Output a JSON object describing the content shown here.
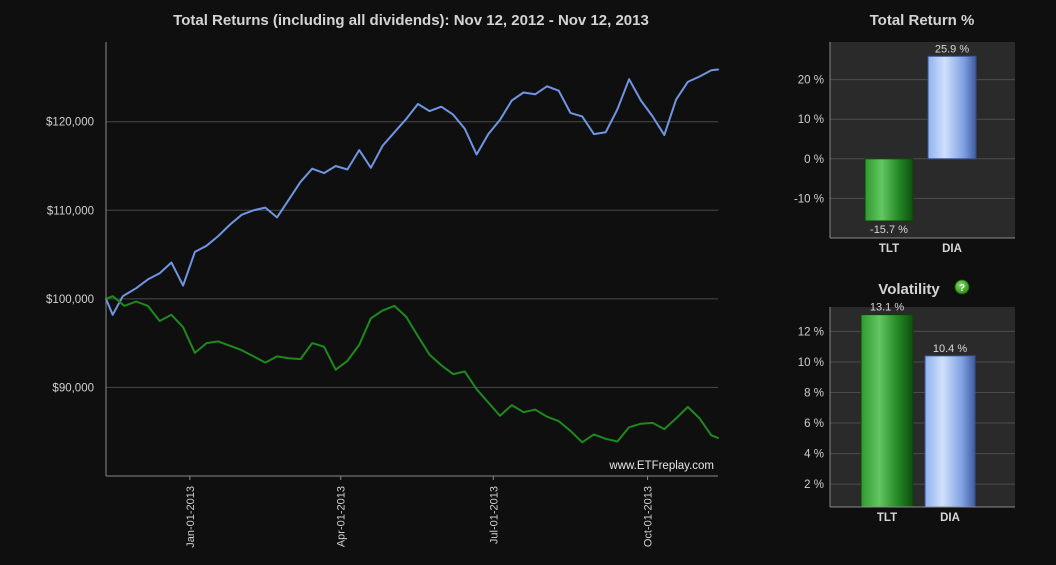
{
  "chart_data": [
    {
      "type": "line",
      "title": "Total Returns (including all dividends): Nov 12, 2012 - Nov 12, 2013",
      "watermark": "www.ETFreplay.com",
      "x_ticks": [
        "Jan-01-2013",
        "Apr-01-2013",
        "Jul-01-2013",
        "Oct-01-2013"
      ],
      "x_range": [
        "2012-11-12",
        "2013-11-12"
      ],
      "y_ticks": [
        "$90,000",
        "$100,000",
        "$110,000",
        "$120,000"
      ],
      "y_tick_values": [
        90000,
        100000,
        110000,
        120000
      ],
      "ylim": [
        80000,
        129000
      ],
      "grid": true,
      "series": [
        {
          "color": "#6f95e3",
          "points": [
            [
              "2012-11-12",
              100000
            ],
            [
              "2012-11-16",
              98200
            ],
            [
              "2012-11-22",
              100300
            ],
            [
              "2012-11-30",
              101200
            ],
            [
              "2012-12-07",
              102200
            ],
            [
              "2012-12-14",
              102900
            ],
            [
              "2012-12-21",
              104100
            ],
            [
              "2012-12-28",
              101500
            ],
            [
              "2013-01-04",
              105300
            ],
            [
              "2013-01-11",
              106000
            ],
            [
              "2013-01-18",
              107100
            ],
            [
              "2013-01-25",
              108400
            ],
            [
              "2013-02-01",
              109500
            ],
            [
              "2013-02-08",
              110000
            ],
            [
              "2013-02-15",
              110300
            ],
            [
              "2013-02-22",
              109200
            ],
            [
              "2013-03-01",
              111200
            ],
            [
              "2013-03-08",
              113200
            ],
            [
              "2013-03-15",
              114700
            ],
            [
              "2013-03-22",
              114200
            ],
            [
              "2013-03-29",
              115000
            ],
            [
              "2013-04-05",
              114600
            ],
            [
              "2013-04-12",
              116800
            ],
            [
              "2013-04-19",
              114800
            ],
            [
              "2013-04-26",
              117300
            ],
            [
              "2013-05-03",
              118800
            ],
            [
              "2013-05-10",
              120300
            ],
            [
              "2013-05-17",
              122000
            ],
            [
              "2013-05-24",
              121200
            ],
            [
              "2013-05-31",
              121700
            ],
            [
              "2013-06-07",
              120800
            ],
            [
              "2013-06-14",
              119200
            ],
            [
              "2013-06-21",
              116300
            ],
            [
              "2013-06-28",
              118600
            ],
            [
              "2013-07-05",
              120200
            ],
            [
              "2013-07-12",
              122400
            ],
            [
              "2013-07-19",
              123300
            ],
            [
              "2013-07-26",
              123100
            ],
            [
              "2013-08-02",
              124000
            ],
            [
              "2013-08-09",
              123500
            ],
            [
              "2013-08-16",
              121000
            ],
            [
              "2013-08-23",
              120600
            ],
            [
              "2013-08-30",
              118600
            ],
            [
              "2013-09-06",
              118800
            ],
            [
              "2013-09-13",
              121400
            ],
            [
              "2013-09-20",
              124800
            ],
            [
              "2013-09-27",
              122400
            ],
            [
              "2013-10-04",
              120600
            ],
            [
              "2013-10-11",
              118500
            ],
            [
              "2013-10-18",
              122500
            ],
            [
              "2013-10-25",
              124500
            ],
            [
              "2013-11-01",
              125100
            ],
            [
              "2013-11-08",
              125800
            ],
            [
              "2013-11-12",
              125900
            ]
          ]
        },
        {
          "color": "#1e8a1e",
          "points": [
            [
              "2012-11-12",
              100000
            ],
            [
              "2012-11-16",
              100300
            ],
            [
              "2012-11-23",
              99200
            ],
            [
              "2012-11-30",
              99700
            ],
            [
              "2012-12-07",
              99200
            ],
            [
              "2012-12-14",
              97500
            ],
            [
              "2012-12-21",
              98200
            ],
            [
              "2012-12-28",
              96800
            ],
            [
              "2013-01-04",
              93900
            ],
            [
              "2013-01-11",
              95000
            ],
            [
              "2013-01-18",
              95200
            ],
            [
              "2013-01-25",
              94700
            ],
            [
              "2013-02-01",
              94200
            ],
            [
              "2013-02-08",
              93500
            ],
            [
              "2013-02-15",
              92800
            ],
            [
              "2013-02-22",
              93500
            ],
            [
              "2013-03-01",
              93300
            ],
            [
              "2013-03-08",
              93200
            ],
            [
              "2013-03-15",
              95000
            ],
            [
              "2013-03-22",
              94600
            ],
            [
              "2013-03-29",
              92000
            ],
            [
              "2013-04-05",
              93000
            ],
            [
              "2013-04-12",
              94800
            ],
            [
              "2013-04-19",
              97800
            ],
            [
              "2013-04-26",
              98700
            ],
            [
              "2013-05-03",
              99200
            ],
            [
              "2013-05-10",
              98000
            ],
            [
              "2013-05-17",
              95800
            ],
            [
              "2013-05-24",
              93700
            ],
            [
              "2013-05-31",
              92500
            ],
            [
              "2013-06-07",
              91500
            ],
            [
              "2013-06-14",
              91800
            ],
            [
              "2013-06-21",
              89800
            ],
            [
              "2013-06-28",
              88300
            ],
            [
              "2013-07-05",
              86800
            ],
            [
              "2013-07-12",
              88000
            ],
            [
              "2013-07-19",
              87200
            ],
            [
              "2013-07-26",
              87500
            ],
            [
              "2013-08-02",
              86700
            ],
            [
              "2013-08-09",
              86200
            ],
            [
              "2013-08-16",
              85100
            ],
            [
              "2013-08-23",
              83800
            ],
            [
              "2013-08-30",
              84700
            ],
            [
              "2013-09-06",
              84200
            ],
            [
              "2013-09-13",
              83900
            ],
            [
              "2013-09-20",
              85500
            ],
            [
              "2013-09-27",
              85900
            ],
            [
              "2013-10-04",
              86000
            ],
            [
              "2013-10-11",
              85300
            ],
            [
              "2013-10-18",
              86500
            ],
            [
              "2013-10-25",
              87800
            ],
            [
              "2013-11-01",
              86500
            ],
            [
              "2013-11-08",
              84600
            ],
            [
              "2013-11-12",
              84300
            ]
          ]
        }
      ]
    },
    {
      "type": "bar",
      "title": "Total Return %",
      "categories": [
        "TLT",
        "DIA"
      ],
      "values": [
        -15.7,
        25.9
      ],
      "value_labels": [
        "-15.7 %",
        "25.9 %"
      ],
      "y_ticks": [
        "20 %",
        "10 %",
        "0 %",
        "-10 %"
      ],
      "y_tick_values": [
        20,
        10,
        0,
        -10
      ],
      "ylim": [
        -20,
        29.5
      ],
      "colors": [
        "#1e8a1e",
        "#7fa6ee"
      ]
    },
    {
      "type": "bar",
      "title": "Volatility",
      "help_icon": "help-icon",
      "categories": [
        "TLT",
        "DIA"
      ],
      "values": [
        13.1,
        10.4
      ],
      "value_labels": [
        "13.1 %",
        "10.4 %"
      ],
      "y_ticks": [
        "12 %",
        "10 %",
        "8 %",
        "6 %",
        "4 %",
        "2 %"
      ],
      "y_tick_values": [
        12,
        10,
        8,
        6,
        4,
        2
      ],
      "ylim": [
        0.5,
        13.6
      ],
      "colors": [
        "#1e8a1e",
        "#7fa6ee"
      ]
    }
  ]
}
